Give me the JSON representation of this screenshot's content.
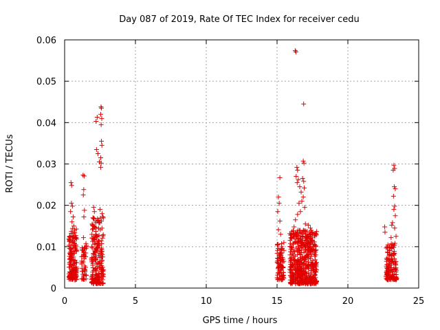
{
  "chart_data": {
    "type": "scatter",
    "title": "Day 087 of 2019, Rate Of TEC Index for receiver cedu",
    "xlabel": "GPS time / hours",
    "ylabel": "ROTI / TECUs",
    "xlim": [
      0,
      25
    ],
    "ylim": [
      0,
      0.06
    ],
    "x_ticks": [
      0,
      5,
      10,
      15,
      20,
      25
    ],
    "x_tick_labels": [
      "0",
      "5",
      "10",
      "15",
      "20",
      "25"
    ],
    "y_ticks": [
      0,
      0.01,
      0.02,
      0.03,
      0.04,
      0.05,
      0.06
    ],
    "y_tick_labels": [
      "0",
      "0.01",
      "0.02",
      "0.03",
      "0.04",
      "0.05",
      "0.06"
    ],
    "grid": true,
    "marker": "+",
    "marker_color": "#e00000",
    "series": [
      {
        "name": "ROTI",
        "clusters": [
          {
            "x_range": [
              0.3,
              0.85
            ],
            "y_range": [
              0.002,
              0.0145
            ],
            "count": 170
          },
          {
            "x_range": [
              1.2,
              1.55
            ],
            "y_range": [
              0.002,
              0.011
            ],
            "count": 45
          },
          {
            "x_range": [
              1.9,
              2.75
            ],
            "y_range": [
              0.001,
              0.017
            ],
            "count": 220
          },
          {
            "x_range": [
              15.0,
              15.5
            ],
            "y_range": [
              0.002,
              0.011
            ],
            "count": 90
          },
          {
            "x_range": [
              15.9,
              17.8
            ],
            "y_range": [
              0.001,
              0.014
            ],
            "count": 520
          },
          {
            "x_range": [
              22.7,
              23.45
            ],
            "y_range": [
              0.002,
              0.011
            ],
            "count": 140
          }
        ],
        "points": [
          {
            "x": 0.45,
            "y": 0.0255
          },
          {
            "x": 0.5,
            "y": 0.0248
          },
          {
            "x": 0.48,
            "y": 0.0205
          },
          {
            "x": 0.55,
            "y": 0.0198
          },
          {
            "x": 0.42,
            "y": 0.0185
          },
          {
            "x": 0.6,
            "y": 0.0172
          },
          {
            "x": 0.52,
            "y": 0.016
          },
          {
            "x": 0.65,
            "y": 0.015
          },
          {
            "x": 1.3,
            "y": 0.0273
          },
          {
            "x": 1.38,
            "y": 0.0271
          },
          {
            "x": 1.35,
            "y": 0.0238
          },
          {
            "x": 1.32,
            "y": 0.0225
          },
          {
            "x": 1.4,
            "y": 0.0188
          },
          {
            "x": 1.36,
            "y": 0.0172
          },
          {
            "x": 1.33,
            "y": 0.0122
          },
          {
            "x": 2.3,
            "y": 0.0413
          },
          {
            "x": 2.22,
            "y": 0.0403
          },
          {
            "x": 2.25,
            "y": 0.0335
          },
          {
            "x": 2.35,
            "y": 0.0325
          },
          {
            "x": 2.45,
            "y": 0.0305
          },
          {
            "x": 2.55,
            "y": 0.0292
          },
          {
            "x": 2.57,
            "y": 0.0438
          },
          {
            "x": 2.6,
            "y": 0.0435
          },
          {
            "x": 2.55,
            "y": 0.042
          },
          {
            "x": 2.62,
            "y": 0.041
          },
          {
            "x": 2.58,
            "y": 0.0395
          },
          {
            "x": 2.6,
            "y": 0.0355
          },
          {
            "x": 2.63,
            "y": 0.0345
          },
          {
            "x": 2.55,
            "y": 0.0315
          },
          {
            "x": 2.58,
            "y": 0.0302
          },
          {
            "x": 2.05,
            "y": 0.0195
          },
          {
            "x": 2.1,
            "y": 0.0185
          },
          {
            "x": 2.0,
            "y": 0.017
          },
          {
            "x": 2.5,
            "y": 0.019
          },
          {
            "x": 2.65,
            "y": 0.018
          },
          {
            "x": 2.7,
            "y": 0.0172
          },
          {
            "x": 2.6,
            "y": 0.0162
          },
          {
            "x": 15.2,
            "y": 0.0267
          },
          {
            "x": 15.1,
            "y": 0.022
          },
          {
            "x": 15.15,
            "y": 0.0205
          },
          {
            "x": 15.05,
            "y": 0.0185
          },
          {
            "x": 15.2,
            "y": 0.0162
          },
          {
            "x": 15.1,
            "y": 0.0141
          },
          {
            "x": 15.25,
            "y": 0.013
          },
          {
            "x": 16.28,
            "y": 0.0574
          },
          {
            "x": 16.33,
            "y": 0.0571
          },
          {
            "x": 16.88,
            "y": 0.0445
          },
          {
            "x": 16.85,
            "y": 0.0307
          },
          {
            "x": 16.9,
            "y": 0.0302
          },
          {
            "x": 16.4,
            "y": 0.0292
          },
          {
            "x": 16.45,
            "y": 0.0285
          },
          {
            "x": 16.35,
            "y": 0.027
          },
          {
            "x": 16.5,
            "y": 0.0262
          },
          {
            "x": 16.42,
            "y": 0.0255
          },
          {
            "x": 16.6,
            "y": 0.0245
          },
          {
            "x": 16.7,
            "y": 0.0232
          },
          {
            "x": 16.8,
            "y": 0.0265
          },
          {
            "x": 16.88,
            "y": 0.0258
          },
          {
            "x": 16.92,
            "y": 0.0242
          },
          {
            "x": 16.85,
            "y": 0.022
          },
          {
            "x": 16.75,
            "y": 0.021
          },
          {
            "x": 16.55,
            "y": 0.0205
          },
          {
            "x": 16.95,
            "y": 0.0195
          },
          {
            "x": 16.65,
            "y": 0.0185
          },
          {
            "x": 16.45,
            "y": 0.0178
          },
          {
            "x": 16.3,
            "y": 0.0165
          },
          {
            "x": 17.2,
            "y": 0.0152
          },
          {
            "x": 17.35,
            "y": 0.0145
          },
          {
            "x": 16.2,
            "y": 0.0148
          },
          {
            "x": 17.0,
            "y": 0.0155
          },
          {
            "x": 23.25,
            "y": 0.0297
          },
          {
            "x": 23.3,
            "y": 0.0289
          },
          {
            "x": 23.2,
            "y": 0.0285
          },
          {
            "x": 23.28,
            "y": 0.0245
          },
          {
            "x": 23.35,
            "y": 0.024
          },
          {
            "x": 23.22,
            "y": 0.0222
          },
          {
            "x": 23.3,
            "y": 0.0198
          },
          {
            "x": 23.25,
            "y": 0.019
          },
          {
            "x": 23.35,
            "y": 0.0175
          },
          {
            "x": 23.15,
            "y": 0.0158
          },
          {
            "x": 23.1,
            "y": 0.0152
          },
          {
            "x": 22.6,
            "y": 0.0148
          },
          {
            "x": 23.3,
            "y": 0.0145
          },
          {
            "x": 22.62,
            "y": 0.0135
          },
          {
            "x": 23.4,
            "y": 0.0125
          },
          {
            "x": 23.05,
            "y": 0.0122
          }
        ]
      }
    ]
  }
}
